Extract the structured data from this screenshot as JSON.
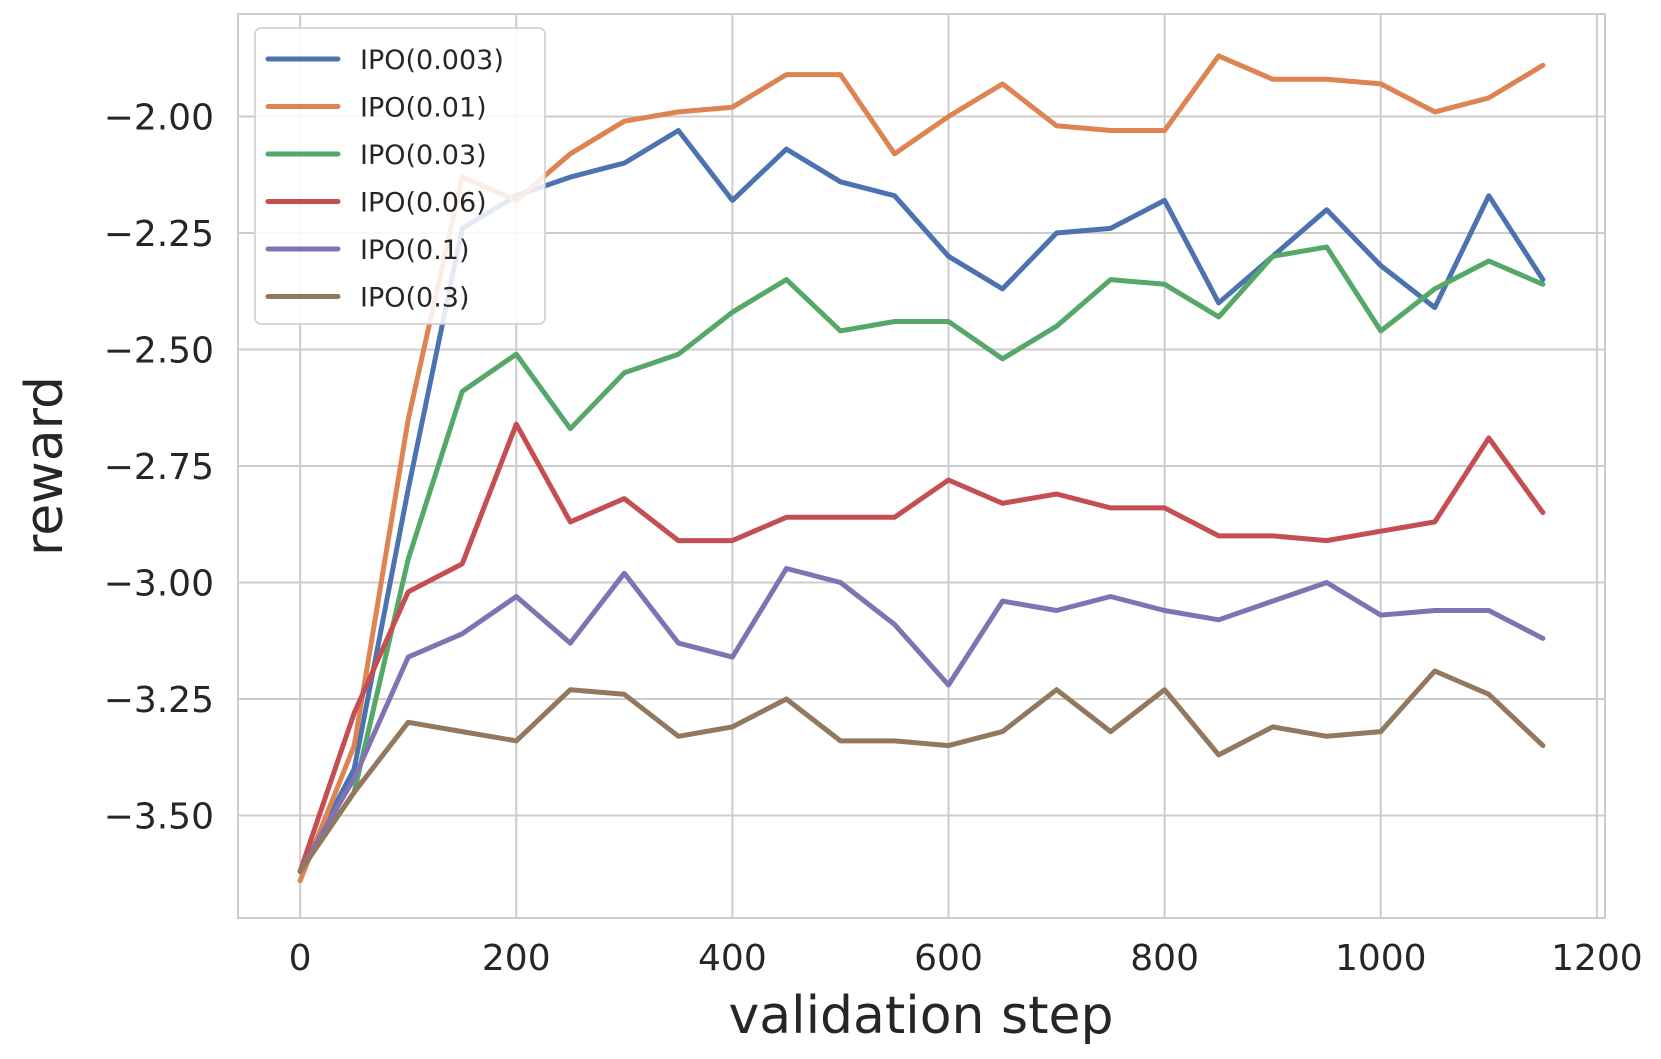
{
  "chart_data": {
    "type": "line",
    "xlabel": "validation step",
    "ylabel": "reward",
    "xlim": [
      -57.5,
      1207.5
    ],
    "ylim": [
      -3.72,
      -1.78
    ],
    "xticks": [
      0,
      200,
      400,
      600,
      800,
      1000,
      1200
    ],
    "xtick_labels": [
      "0",
      "200",
      "400",
      "600",
      "800",
      "1000",
      "1200"
    ],
    "yticks": [
      -2.0,
      -2.25,
      -2.5,
      -2.75,
      -3.0,
      -3.25,
      -3.5
    ],
    "ytick_labels": [
      "−2.00",
      "−2.25",
      "−2.50",
      "−2.75",
      "−3.00",
      "−3.25",
      "−3.50"
    ],
    "grid": true,
    "legend_position": "top-left",
    "x": [
      0,
      50,
      100,
      150,
      200,
      250,
      300,
      350,
      400,
      450,
      500,
      550,
      600,
      650,
      700,
      750,
      800,
      850,
      900,
      950,
      1000,
      1050,
      1100,
      1150
    ],
    "series": [
      {
        "name": "IPO(0.003)",
        "color": "#4c72b0",
        "values": [
          -3.62,
          -3.4,
          -2.8,
          -2.24,
          -2.17,
          -2.13,
          -2.1,
          -2.03,
          -2.18,
          -2.07,
          -2.14,
          -2.17,
          -2.3,
          -2.37,
          -2.25,
          -2.24,
          -2.18,
          -2.4,
          -2.3,
          -2.2,
          -2.32,
          -2.41,
          -2.17,
          -2.35
        ]
      },
      {
        "name": "IPO(0.01)",
        "color": "#dd8452",
        "values": [
          -3.64,
          -3.35,
          -2.65,
          -2.13,
          -2.18,
          -2.08,
          -2.01,
          -1.99,
          -1.98,
          -1.91,
          -1.91,
          -2.08,
          -2.0,
          -1.93,
          -2.02,
          -2.03,
          -2.03,
          -1.87,
          -1.92,
          -1.92,
          -1.93,
          -1.99,
          -1.96,
          -1.89
        ]
      },
      {
        "name": "IPO(0.03)",
        "color": "#55a868",
        "values": [
          -3.62,
          -3.45,
          -2.95,
          -2.59,
          -2.51,
          -2.67,
          -2.55,
          -2.51,
          -2.42,
          -2.35,
          -2.46,
          -2.44,
          -2.44,
          -2.52,
          -2.45,
          -2.35,
          -2.36,
          -2.43,
          -2.3,
          -2.28,
          -2.46,
          -2.37,
          -2.31,
          -2.36
        ]
      },
      {
        "name": "IPO(0.06)",
        "color": "#c44e52",
        "values": [
          -3.62,
          -3.28,
          -3.02,
          -2.96,
          -2.66,
          -2.87,
          -2.82,
          -2.91,
          -2.91,
          -2.86,
          -2.86,
          -2.86,
          -2.78,
          -2.83,
          -2.81,
          -2.84,
          -2.84,
          -2.9,
          -2.9,
          -2.91,
          -2.89,
          -2.87,
          -2.69,
          -2.85
        ]
      },
      {
        "name": "IPO(0.1)",
        "color": "#8172b3",
        "values": [
          -3.62,
          -3.42,
          -3.16,
          -3.11,
          -3.03,
          -3.13,
          -2.98,
          -3.13,
          -3.16,
          -2.97,
          -3.0,
          -3.09,
          -3.22,
          -3.04,
          -3.06,
          -3.03,
          -3.06,
          -3.08,
          -3.04,
          -3.0,
          -3.07,
          -3.06,
          -3.06,
          -3.12
        ]
      },
      {
        "name": "IPO(0.3)",
        "color": "#937860",
        "values": [
          -3.62,
          -3.45,
          -3.3,
          -3.32,
          -3.34,
          -3.23,
          -3.24,
          -3.33,
          -3.31,
          -3.25,
          -3.34,
          -3.34,
          -3.35,
          -3.32,
          -3.23,
          -3.32,
          -3.23,
          -3.37,
          -3.31,
          -3.33,
          -3.32,
          -3.19,
          -3.24,
          -3.35
        ]
      }
    ]
  }
}
